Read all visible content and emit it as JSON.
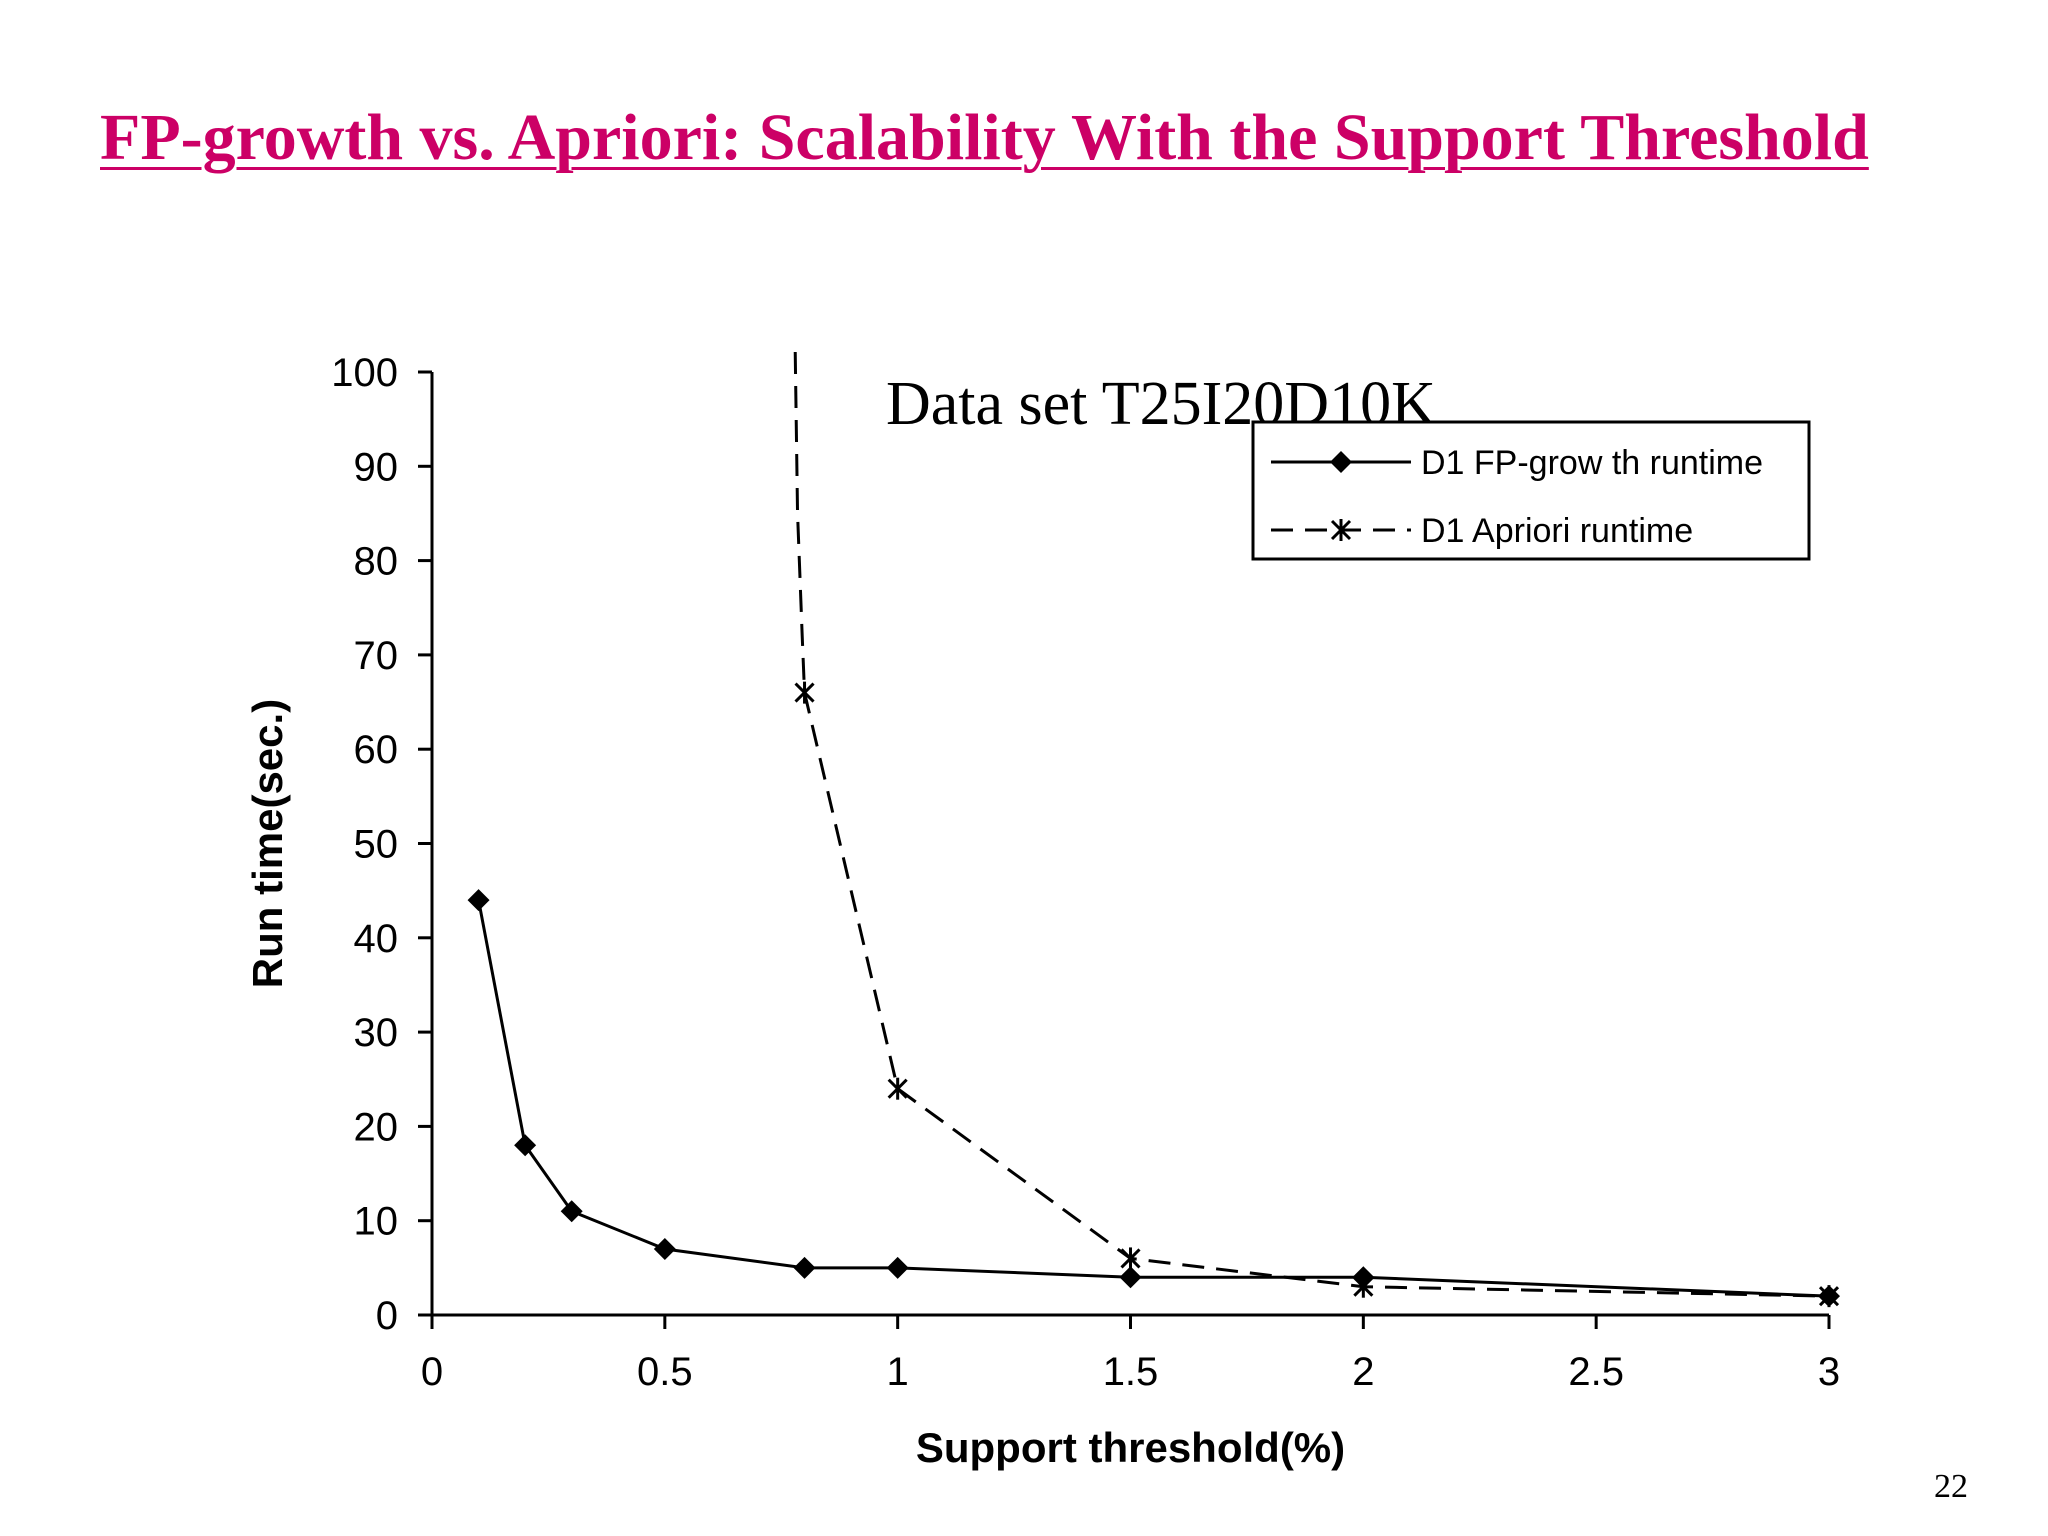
{
  "slide": {
    "title": "FP-growth vs. Apriori: Scalability With the Support Threshold",
    "page_number": "22",
    "title_color": "#cc0066"
  },
  "chart_data": {
    "type": "line",
    "annotation": "Data set T25I20D10K",
    "xlabel": "Support threshold(%)",
    "ylabel": "Run time(sec.)",
    "xlim": [
      0,
      3
    ],
    "ylim": [
      0,
      100
    ],
    "x_ticks": [
      "0",
      "0.5",
      "1",
      "1.5",
      "2",
      "2.5",
      "3"
    ],
    "y_ticks": [
      "0",
      "10",
      "20",
      "30",
      "40",
      "50",
      "60",
      "70",
      "80",
      "90",
      "100"
    ],
    "grid": false,
    "legend_placement": "top-right",
    "series": [
      {
        "name": "D1 FP-grow th runtime",
        "marker": "diamond",
        "line": "solid",
        "color": "#000000",
        "points": [
          {
            "x": 0.1,
            "y": 44
          },
          {
            "x": 0.2,
            "y": 18
          },
          {
            "x": 0.3,
            "y": 11
          },
          {
            "x": 0.5,
            "y": 7
          },
          {
            "x": 0.8,
            "y": 5
          },
          {
            "x": 1,
            "y": 5
          },
          {
            "x": 1.5,
            "y": 4
          },
          {
            "x": 2,
            "y": 4
          },
          {
            "x": 3,
            "y": 2
          }
        ]
      },
      {
        "name": "D1 Apriori runtime",
        "marker": "asterisk",
        "line": "dashed",
        "color": "#000000",
        "points": [
          {
            "x": 0.8,
            "y": 66
          },
          {
            "x": 1,
            "y": 24
          },
          {
            "x": 1.5,
            "y": 6
          },
          {
            "x": 2,
            "y": 3
          },
          {
            "x": 3,
            "y": 2
          }
        ]
      }
    ]
  }
}
